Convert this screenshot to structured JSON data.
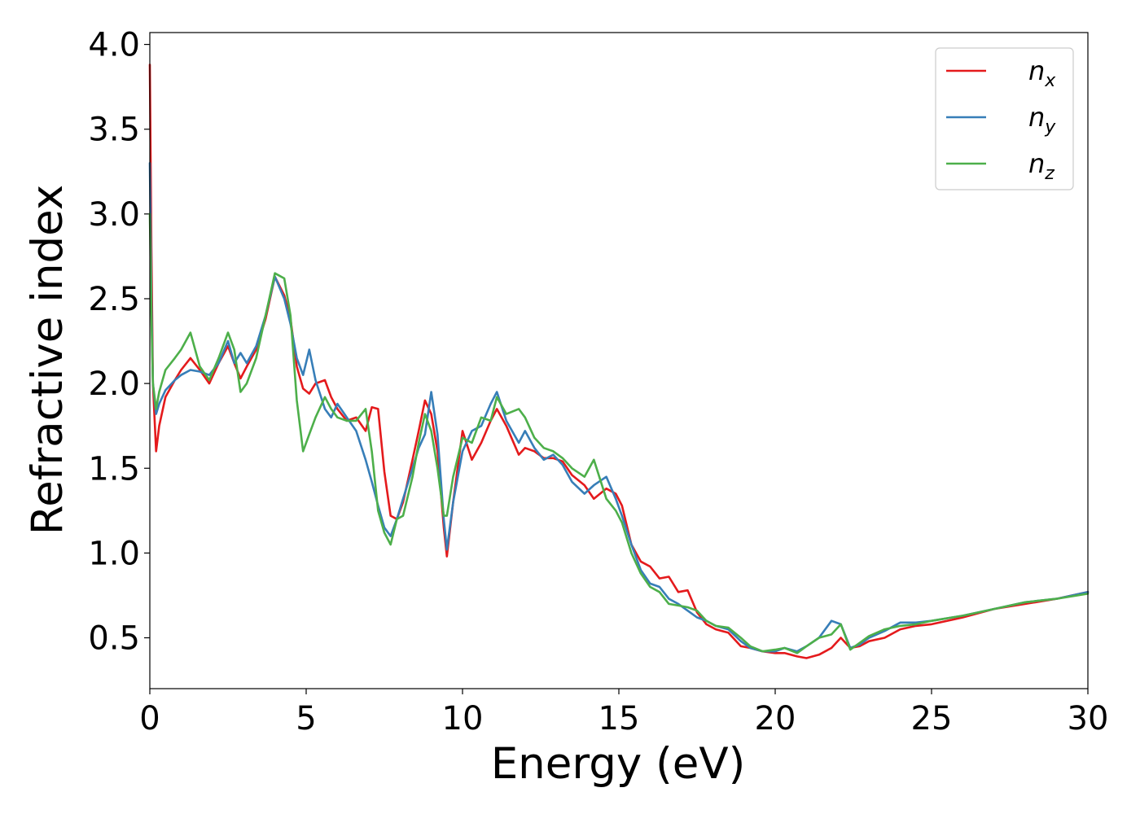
{
  "chart_data": {
    "type": "line",
    "xlabel": "Energy (eV)",
    "ylabel": "Refractive index",
    "xlim": [
      0,
      30
    ],
    "ylim": [
      0.2,
      4.07
    ],
    "xticks": [
      0,
      5,
      10,
      15,
      20,
      25,
      30
    ],
    "xtick_labels": [
      "0",
      "5",
      "10",
      "15",
      "20",
      "25",
      "30"
    ],
    "yticks": [
      0.5,
      1.0,
      1.5,
      2.0,
      2.5,
      3.0,
      3.5,
      4.0
    ],
    "ytick_labels": [
      "0.5",
      "1.0",
      "1.5",
      "2.0",
      "2.5",
      "3.0",
      "3.5",
      "4.0"
    ],
    "grid": false,
    "legend_position": "top-right",
    "series": [
      {
        "name": "n_x",
        "label_base": "n",
        "label_sub": "x",
        "color": "#e41a1c",
        "x": [
          0.0,
          0.05,
          0.1,
          0.2,
          0.3,
          0.5,
          0.8,
          1.0,
          1.3,
          1.6,
          1.9,
          2.2,
          2.5,
          2.7,
          2.9,
          3.1,
          3.4,
          3.7,
          4.0,
          4.3,
          4.5,
          4.7,
          4.9,
          5.1,
          5.3,
          5.6,
          5.8,
          6.0,
          6.3,
          6.6,
          6.9,
          7.1,
          7.3,
          7.5,
          7.7,
          7.9,
          8.1,
          8.4,
          8.6,
          8.8,
          9.0,
          9.2,
          9.4,
          9.5,
          9.7,
          10.0,
          10.3,
          10.6,
          10.9,
          11.1,
          11.4,
          11.8,
          12.0,
          12.3,
          12.6,
          12.9,
          13.2,
          13.5,
          13.9,
          14.2,
          14.6,
          14.9,
          15.1,
          15.4,
          15.7,
          16.0,
          16.3,
          16.6,
          16.9,
          17.2,
          17.5,
          17.8,
          18.1,
          18.5,
          18.9,
          19.2,
          19.6,
          20.0,
          20.3,
          20.7,
          21.0,
          21.4,
          21.8,
          22.1,
          22.4,
          22.7,
          23.0,
          23.5,
          24.0,
          24.5,
          25.0,
          26.0,
          27.0,
          28.0,
          29.0,
          30.0
        ],
        "y": [
          3.88,
          2.8,
          2.0,
          1.6,
          1.75,
          1.92,
          2.02,
          2.08,
          2.15,
          2.08,
          2.0,
          2.12,
          2.22,
          2.12,
          2.03,
          2.1,
          2.2,
          2.38,
          2.63,
          2.52,
          2.38,
          2.1,
          1.97,
          1.94,
          2.0,
          2.02,
          1.92,
          1.85,
          1.78,
          1.8,
          1.72,
          1.86,
          1.85,
          1.48,
          1.22,
          1.2,
          1.3,
          1.55,
          1.72,
          1.9,
          1.82,
          1.6,
          1.15,
          0.98,
          1.3,
          1.72,
          1.55,
          1.65,
          1.78,
          1.85,
          1.75,
          1.58,
          1.62,
          1.6,
          1.56,
          1.56,
          1.54,
          1.46,
          1.4,
          1.32,
          1.38,
          1.35,
          1.28,
          1.05,
          0.95,
          0.92,
          0.85,
          0.86,
          0.77,
          0.78,
          0.65,
          0.58,
          0.55,
          0.53,
          0.45,
          0.44,
          0.42,
          0.41,
          0.41,
          0.39,
          0.38,
          0.4,
          0.44,
          0.5,
          0.44,
          0.45,
          0.48,
          0.5,
          0.55,
          0.57,
          0.58,
          0.62,
          0.67,
          0.7,
          0.73,
          0.77
        ]
      },
      {
        "name": "n_y",
        "label_base": "n",
        "label_sub": "y",
        "color": "#377eb8",
        "x": [
          0.0,
          0.05,
          0.1,
          0.2,
          0.3,
          0.5,
          0.8,
          1.0,
          1.3,
          1.6,
          1.9,
          2.2,
          2.5,
          2.7,
          2.9,
          3.1,
          3.4,
          3.7,
          4.0,
          4.3,
          4.5,
          4.7,
          4.9,
          5.1,
          5.3,
          5.6,
          5.8,
          6.0,
          6.3,
          6.6,
          6.9,
          7.1,
          7.3,
          7.5,
          7.7,
          7.9,
          8.1,
          8.4,
          8.6,
          8.8,
          9.0,
          9.2,
          9.4,
          9.5,
          9.7,
          10.0,
          10.3,
          10.6,
          10.9,
          11.1,
          11.4,
          11.8,
          12.0,
          12.3,
          12.6,
          12.9,
          13.2,
          13.5,
          13.9,
          14.2,
          14.6,
          14.9,
          15.1,
          15.4,
          15.7,
          16.0,
          16.3,
          16.6,
          16.9,
          17.2,
          17.5,
          17.8,
          18.1,
          18.5,
          18.9,
          19.2,
          19.6,
          20.0,
          20.3,
          20.7,
          21.0,
          21.4,
          21.8,
          22.1,
          22.4,
          22.7,
          23.0,
          23.5,
          24.0,
          24.5,
          25.0,
          26.0,
          27.0,
          28.0,
          29.0,
          30.0
        ],
        "y": [
          3.3,
          2.5,
          2.0,
          1.82,
          1.88,
          1.96,
          2.02,
          2.05,
          2.08,
          2.07,
          2.05,
          2.12,
          2.25,
          2.12,
          2.18,
          2.12,
          2.22,
          2.4,
          2.63,
          2.5,
          2.35,
          2.15,
          2.05,
          2.2,
          2.02,
          1.85,
          1.8,
          1.88,
          1.8,
          1.72,
          1.55,
          1.42,
          1.28,
          1.15,
          1.1,
          1.2,
          1.32,
          1.5,
          1.62,
          1.7,
          1.95,
          1.7,
          1.2,
          1.02,
          1.3,
          1.6,
          1.72,
          1.75,
          1.88,
          1.95,
          1.78,
          1.65,
          1.72,
          1.62,
          1.55,
          1.58,
          1.52,
          1.42,
          1.35,
          1.4,
          1.45,
          1.32,
          1.22,
          1.05,
          0.9,
          0.82,
          0.8,
          0.73,
          0.7,
          0.66,
          0.62,
          0.6,
          0.57,
          0.55,
          0.48,
          0.44,
          0.42,
          0.42,
          0.44,
          0.42,
          0.45,
          0.5,
          0.6,
          0.58,
          0.44,
          0.46,
          0.5,
          0.54,
          0.59,
          0.59,
          0.6,
          0.63,
          0.67,
          0.71,
          0.73,
          0.77
        ]
      },
      {
        "name": "n_z",
        "label_base": "n",
        "label_sub": "z",
        "color": "#4daf4a",
        "x": [
          0.0,
          0.05,
          0.1,
          0.2,
          0.3,
          0.5,
          0.8,
          1.0,
          1.3,
          1.6,
          1.9,
          2.2,
          2.5,
          2.7,
          2.9,
          3.1,
          3.4,
          3.7,
          4.0,
          4.3,
          4.5,
          4.7,
          4.9,
          5.1,
          5.3,
          5.6,
          5.8,
          6.0,
          6.3,
          6.6,
          6.9,
          7.1,
          7.3,
          7.5,
          7.7,
          7.9,
          8.1,
          8.4,
          8.6,
          8.8,
          9.0,
          9.2,
          9.4,
          9.5,
          9.7,
          10.0,
          10.3,
          10.6,
          10.9,
          11.1,
          11.4,
          11.8,
          12.0,
          12.3,
          12.6,
          12.9,
          13.2,
          13.5,
          13.9,
          14.2,
          14.6,
          14.9,
          15.1,
          15.4,
          15.7,
          16.0,
          16.3,
          16.6,
          16.9,
          17.2,
          17.5,
          17.8,
          18.1,
          18.5,
          18.9,
          19.2,
          19.6,
          20.0,
          20.3,
          20.7,
          21.0,
          21.4,
          21.8,
          22.1,
          22.4,
          22.7,
          23.0,
          23.5,
          24.0,
          24.5,
          25.0,
          26.0,
          27.0,
          28.0,
          29.0,
          30.0
        ],
        "y": [
          3.0,
          2.4,
          2.0,
          1.85,
          1.95,
          2.08,
          2.15,
          2.2,
          2.3,
          2.1,
          2.02,
          2.15,
          2.3,
          2.2,
          1.95,
          2.0,
          2.15,
          2.4,
          2.65,
          2.62,
          2.4,
          1.9,
          1.6,
          1.7,
          1.8,
          1.92,
          1.85,
          1.8,
          1.78,
          1.78,
          1.85,
          1.6,
          1.25,
          1.12,
          1.05,
          1.2,
          1.22,
          1.45,
          1.65,
          1.82,
          1.72,
          1.5,
          1.22,
          1.22,
          1.45,
          1.68,
          1.65,
          1.8,
          1.78,
          1.92,
          1.82,
          1.85,
          1.8,
          1.68,
          1.62,
          1.6,
          1.56,
          1.5,
          1.45,
          1.55,
          1.32,
          1.25,
          1.18,
          1.0,
          0.88,
          0.8,
          0.77,
          0.7,
          0.69,
          0.68,
          0.66,
          0.6,
          0.57,
          0.56,
          0.5,
          0.45,
          0.42,
          0.43,
          0.44,
          0.41,
          0.45,
          0.5,
          0.52,
          0.58,
          0.43,
          0.47,
          0.51,
          0.55,
          0.57,
          0.58,
          0.6,
          0.63,
          0.67,
          0.71,
          0.73,
          0.76
        ]
      }
    ]
  }
}
